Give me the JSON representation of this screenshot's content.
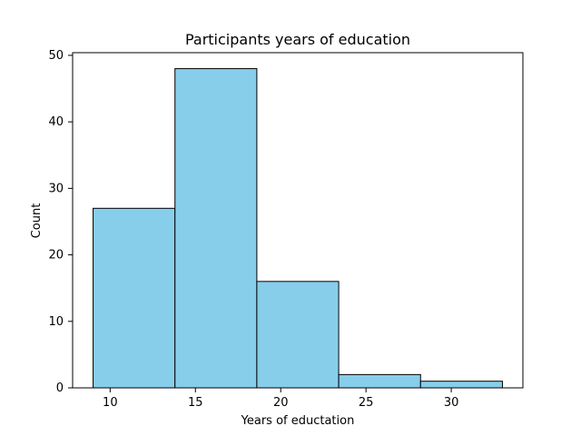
{
  "chart_data": {
    "type": "bar",
    "title": "Participants years of education",
    "xlabel": "Years of eductation",
    "ylabel": "Count",
    "bins": [
      {
        "start": 9.0,
        "end": 13.8,
        "count": 27
      },
      {
        "start": 13.8,
        "end": 18.6,
        "count": 48
      },
      {
        "start": 18.6,
        "end": 23.4,
        "count": 16
      },
      {
        "start": 23.4,
        "end": 28.2,
        "count": 2
      },
      {
        "start": 28.2,
        "end": 33.0,
        "count": 1
      }
    ],
    "xlim": [
      7.8,
      34.2
    ],
    "ylim": [
      0,
      50.4
    ],
    "xticks": [
      10,
      15,
      20,
      25,
      30
    ],
    "yticks": [
      0,
      10,
      20,
      30,
      40,
      50
    ],
    "grid": false,
    "bar_color": "#87CEEB",
    "edge_color": "#000000"
  }
}
